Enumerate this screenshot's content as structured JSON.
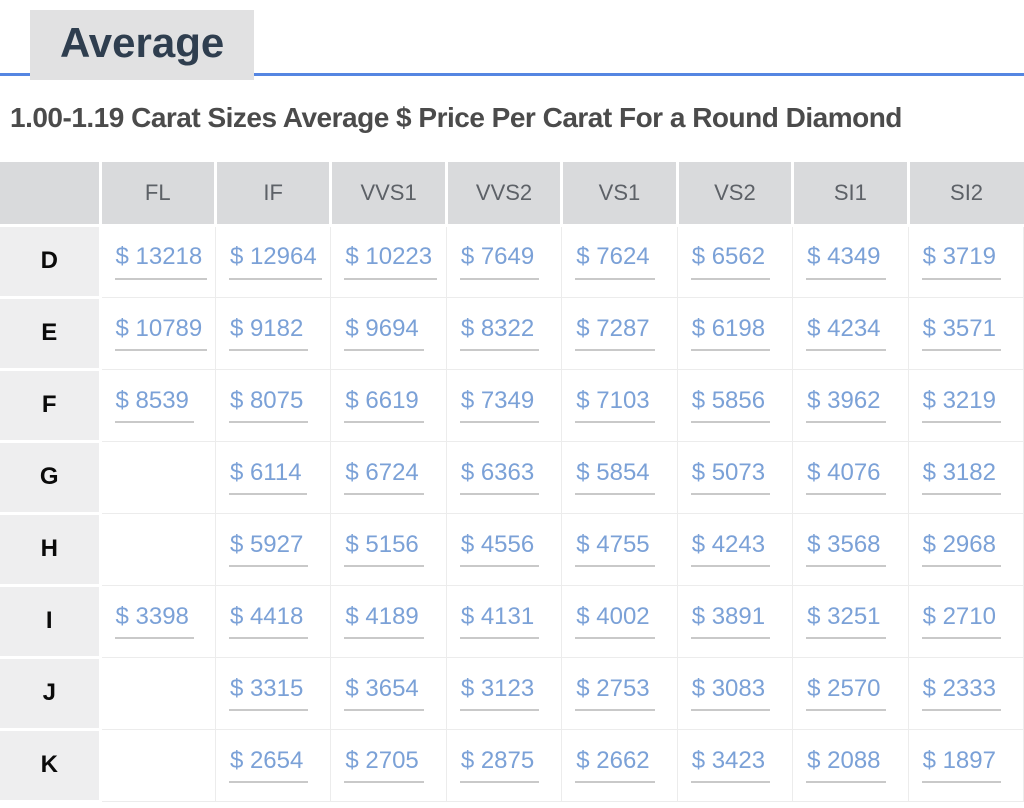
{
  "tab": {
    "label": "Average"
  },
  "title": "1.00-1.19 Carat Sizes Average $ Price Per Carat For a Round Diamond",
  "chart_data": {
    "type": "table",
    "title": "1.00-1.19 Carat Sizes Average $ Price Per Carat For a Round Diamond",
    "currency_prefix": "$",
    "columns": [
      "FL",
      "IF",
      "VVS1",
      "VVS2",
      "VS1",
      "VS2",
      "SI1",
      "SI2"
    ],
    "rows": [
      {
        "label": "D",
        "values": [
          13218,
          12964,
          10223,
          7649,
          7624,
          6562,
          4349,
          3719
        ]
      },
      {
        "label": "E",
        "values": [
          10789,
          9182,
          9694,
          8322,
          7287,
          6198,
          4234,
          3571
        ]
      },
      {
        "label": "F",
        "values": [
          8539,
          8075,
          6619,
          7349,
          7103,
          5856,
          3962,
          3219
        ]
      },
      {
        "label": "G",
        "values": [
          null,
          6114,
          6724,
          6363,
          5854,
          5073,
          4076,
          3182
        ]
      },
      {
        "label": "H",
        "values": [
          null,
          5927,
          5156,
          4556,
          4755,
          4243,
          3568,
          2968
        ]
      },
      {
        "label": "I",
        "values": [
          3398,
          4418,
          4189,
          4131,
          4002,
          3891,
          3251,
          2710
        ]
      },
      {
        "label": "J",
        "values": [
          null,
          3315,
          3654,
          3123,
          2753,
          3083,
          2570,
          2333
        ]
      },
      {
        "label": "K",
        "values": [
          null,
          2654,
          2705,
          2875,
          2662,
          3423,
          2088,
          1897
        ]
      }
    ]
  },
  "colors": {
    "tab_background": "#e1e1e2",
    "tab_text": "#2f3e4f",
    "tab_underline": "#5586e2",
    "title_text": "#4b4b4b",
    "header_background": "#d9dadc",
    "header_text": "#5d6167",
    "row_label_background": "#eeeeef",
    "price_link": "#7ba1d7",
    "price_underline": "#c9c9c9",
    "cell_border": "#ececec"
  }
}
